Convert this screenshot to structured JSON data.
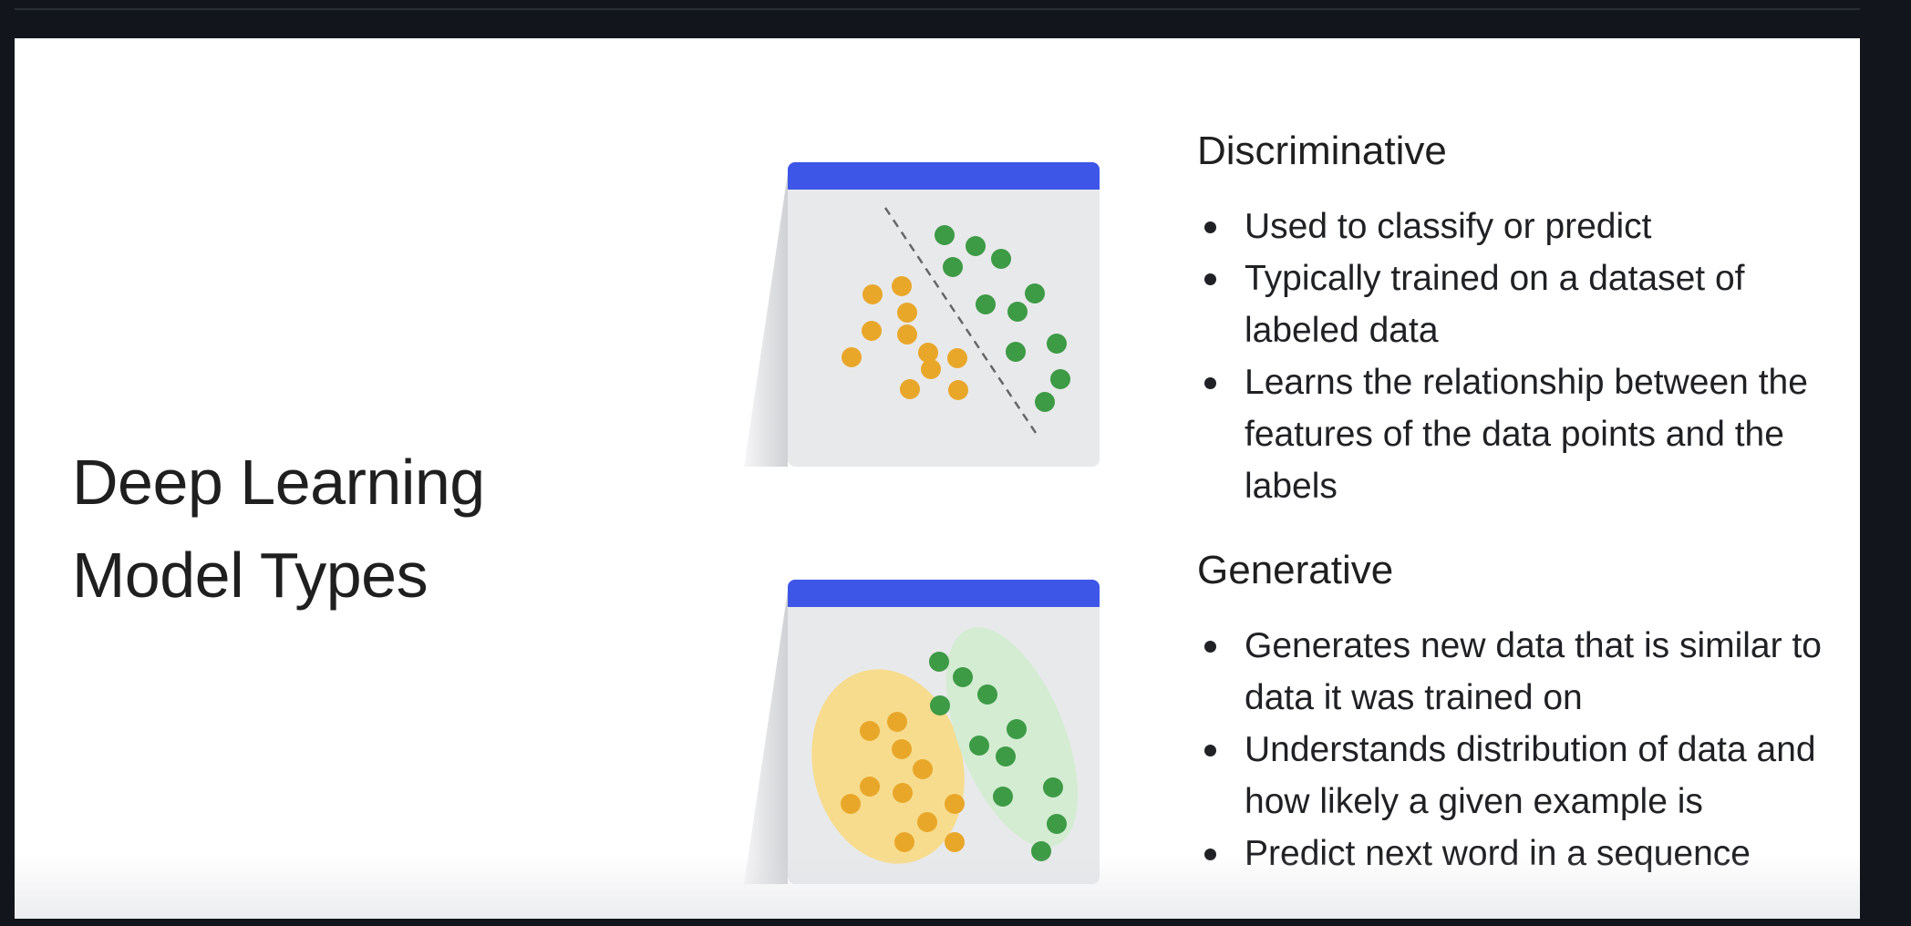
{
  "slide": {
    "title_lines": [
      "Deep Learning",
      "Model Types"
    ]
  },
  "discriminative": {
    "heading": "Discriminative",
    "bullets": [
      "Used to classify or predict",
      "Typically trained on a dataset of labeled data",
      "Learns the relationship between the features of the data points and the labels"
    ]
  },
  "generative": {
    "heading": "Generative",
    "bullets": [
      "Generates new data that is similar to data it was trained on",
      "Understands distribution of data and how likely a given example is",
      "Predict next word in a sequence"
    ]
  },
  "colors": {
    "header_blue": "#3d56e8",
    "dot_yellow": "#e9a72a",
    "dot_green": "#3d9a45",
    "ellipse_yellow": "#f7dc8d",
    "ellipse_green": "#d3ecd2",
    "card_bg": "#e8e9eb"
  }
}
